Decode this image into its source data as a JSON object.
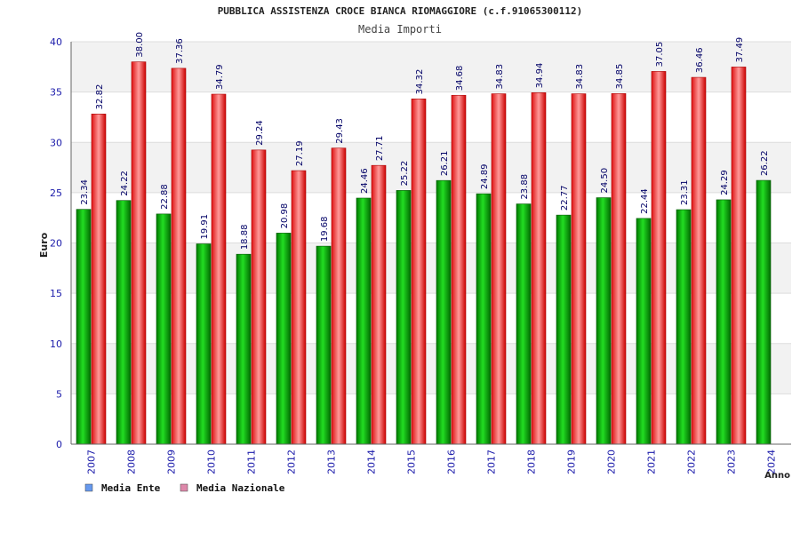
{
  "chart_data": {
    "type": "bar",
    "title": "PUBBLICA ASSISTENZA CROCE BIANCA RIOMAGGIORE (c.f.91065300112)",
    "subtitle": "Media Importi",
    "xlabel": "Anno",
    "ylabel": "Euro",
    "ylim": [
      0,
      40
    ],
    "yticks": [
      0,
      5,
      10,
      15,
      20,
      25,
      30,
      35,
      40
    ],
    "grid": true,
    "legend_position": "bottom-left",
    "categories": [
      "2007",
      "2008",
      "2009",
      "2010",
      "2011",
      "2012",
      "2013",
      "2014",
      "2015",
      "2016",
      "2017",
      "2018",
      "2019",
      "2020",
      "2021",
      "2022",
      "2023",
      "2024"
    ],
    "series": [
      {
        "name": "Media Ente",
        "color": "#00bb00",
        "values": [
          23.34,
          24.22,
          22.88,
          19.91,
          18.88,
          20.98,
          19.68,
          24.46,
          25.22,
          26.21,
          24.89,
          23.88,
          22.77,
          24.5,
          22.44,
          23.31,
          24.29,
          26.22
        ],
        "labels": [
          "23.34",
          "24.22",
          "22.88",
          "19.91",
          "18.88",
          "20.98",
          "19.68",
          "24.46",
          "25.22",
          "26.21",
          "24.89",
          "23.88",
          "22.77",
          "24.50",
          "22.44",
          "23.31",
          "24.29",
          "26.22"
        ]
      },
      {
        "name": "Media Nazionale",
        "color": "#ee2222",
        "values": [
          32.82,
          38.0,
          37.36,
          34.79,
          29.24,
          27.19,
          29.43,
          27.71,
          34.32,
          34.68,
          34.83,
          34.94,
          34.83,
          34.85,
          37.05,
          36.46,
          37.49,
          null
        ],
        "labels": [
          "32.82",
          "38.00",
          "37.36",
          "34.79",
          "29.24",
          "27.19",
          "29.43",
          "27.71",
          "34.32",
          "34.68",
          "34.83",
          "34.94",
          "34.83",
          "34.85",
          "37.05",
          "36.46",
          "37.49",
          ""
        ]
      }
    ],
    "legend": [
      {
        "label": "Media Ente",
        "swatch": "#6699ee"
      },
      {
        "label": "Media Nazionale",
        "swatch": "#dd88aa"
      }
    ]
  }
}
